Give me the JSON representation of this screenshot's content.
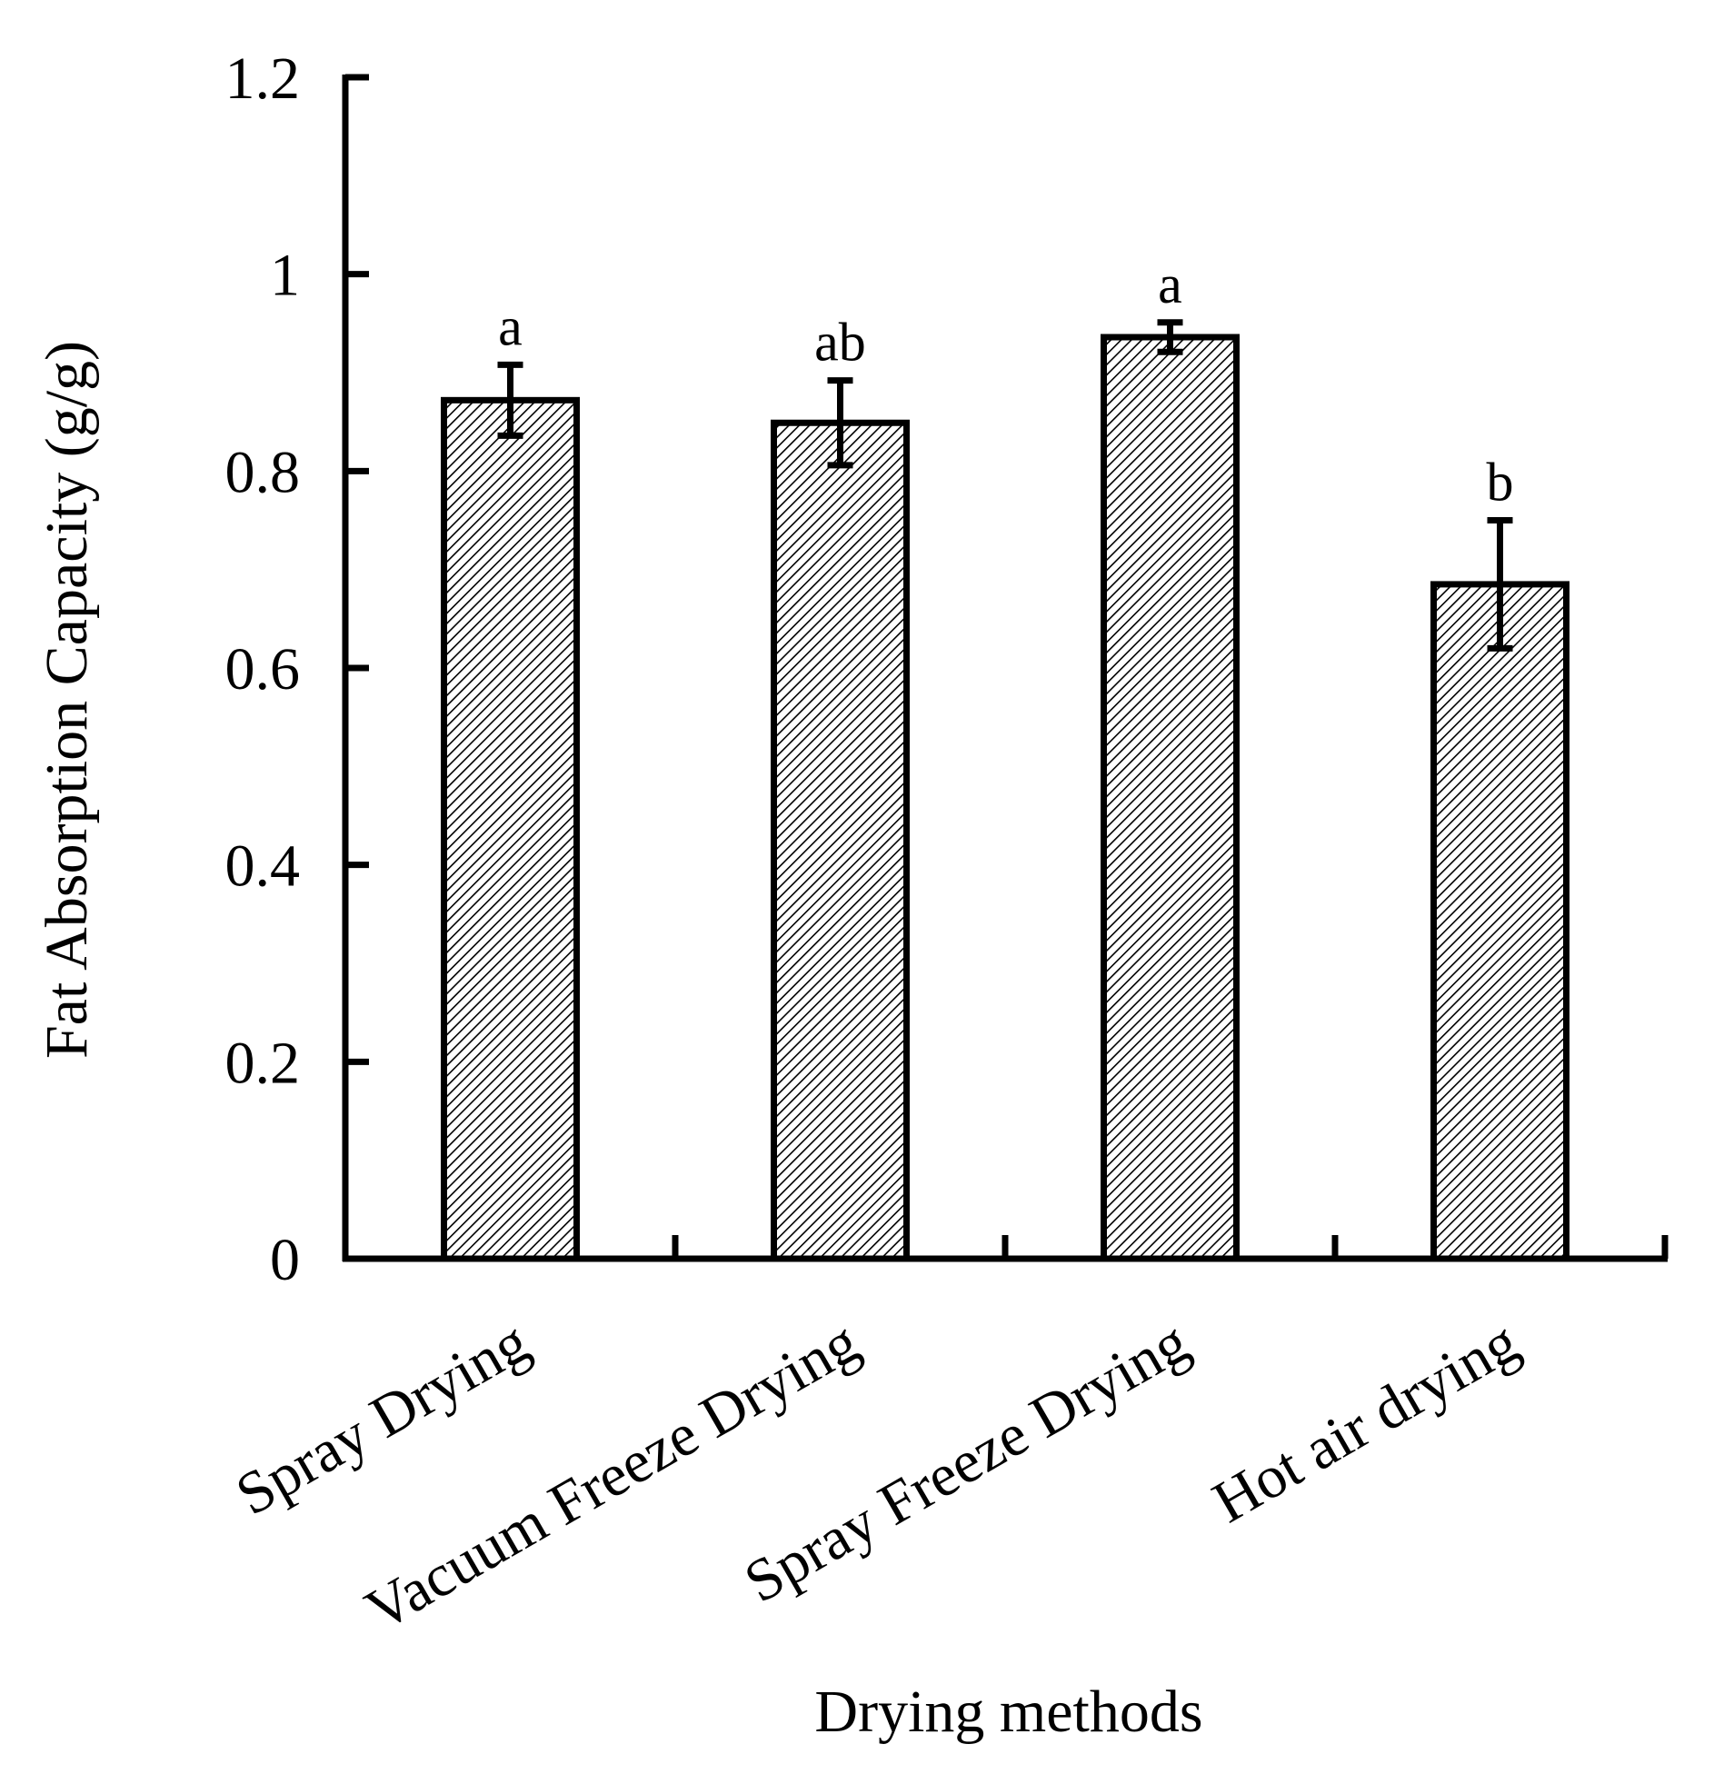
{
  "chart_data": {
    "type": "bar",
    "title": "",
    "xlabel": "Drying methods",
    "ylabel": "Fat Absorption Capacity (g/g)",
    "ylim": [
      0,
      1.2
    ],
    "yticks": [
      "0",
      "0.2",
      "0.4",
      "0.6",
      "0.8",
      "1",
      "1.2"
    ],
    "yticks_values": [
      0,
      0.2,
      0.4,
      0.6,
      0.8,
      1.0,
      1.2
    ],
    "categories": [
      "Spray Drying",
      "Vacuum Freeze Drying",
      "Spray Freeze Drying",
      "Hot air drying"
    ],
    "values": [
      0.872,
      0.849,
      0.936,
      0.685
    ],
    "errors": [
      0.036,
      0.043,
      0.015,
      0.065
    ],
    "significance_letters": [
      "a",
      "ab",
      "a",
      "b"
    ],
    "bar_fill": "hatched",
    "colors": {
      "bar_edge": "#000000",
      "hatch": "#000000",
      "background": "#ffffff"
    },
    "grid": false
  }
}
